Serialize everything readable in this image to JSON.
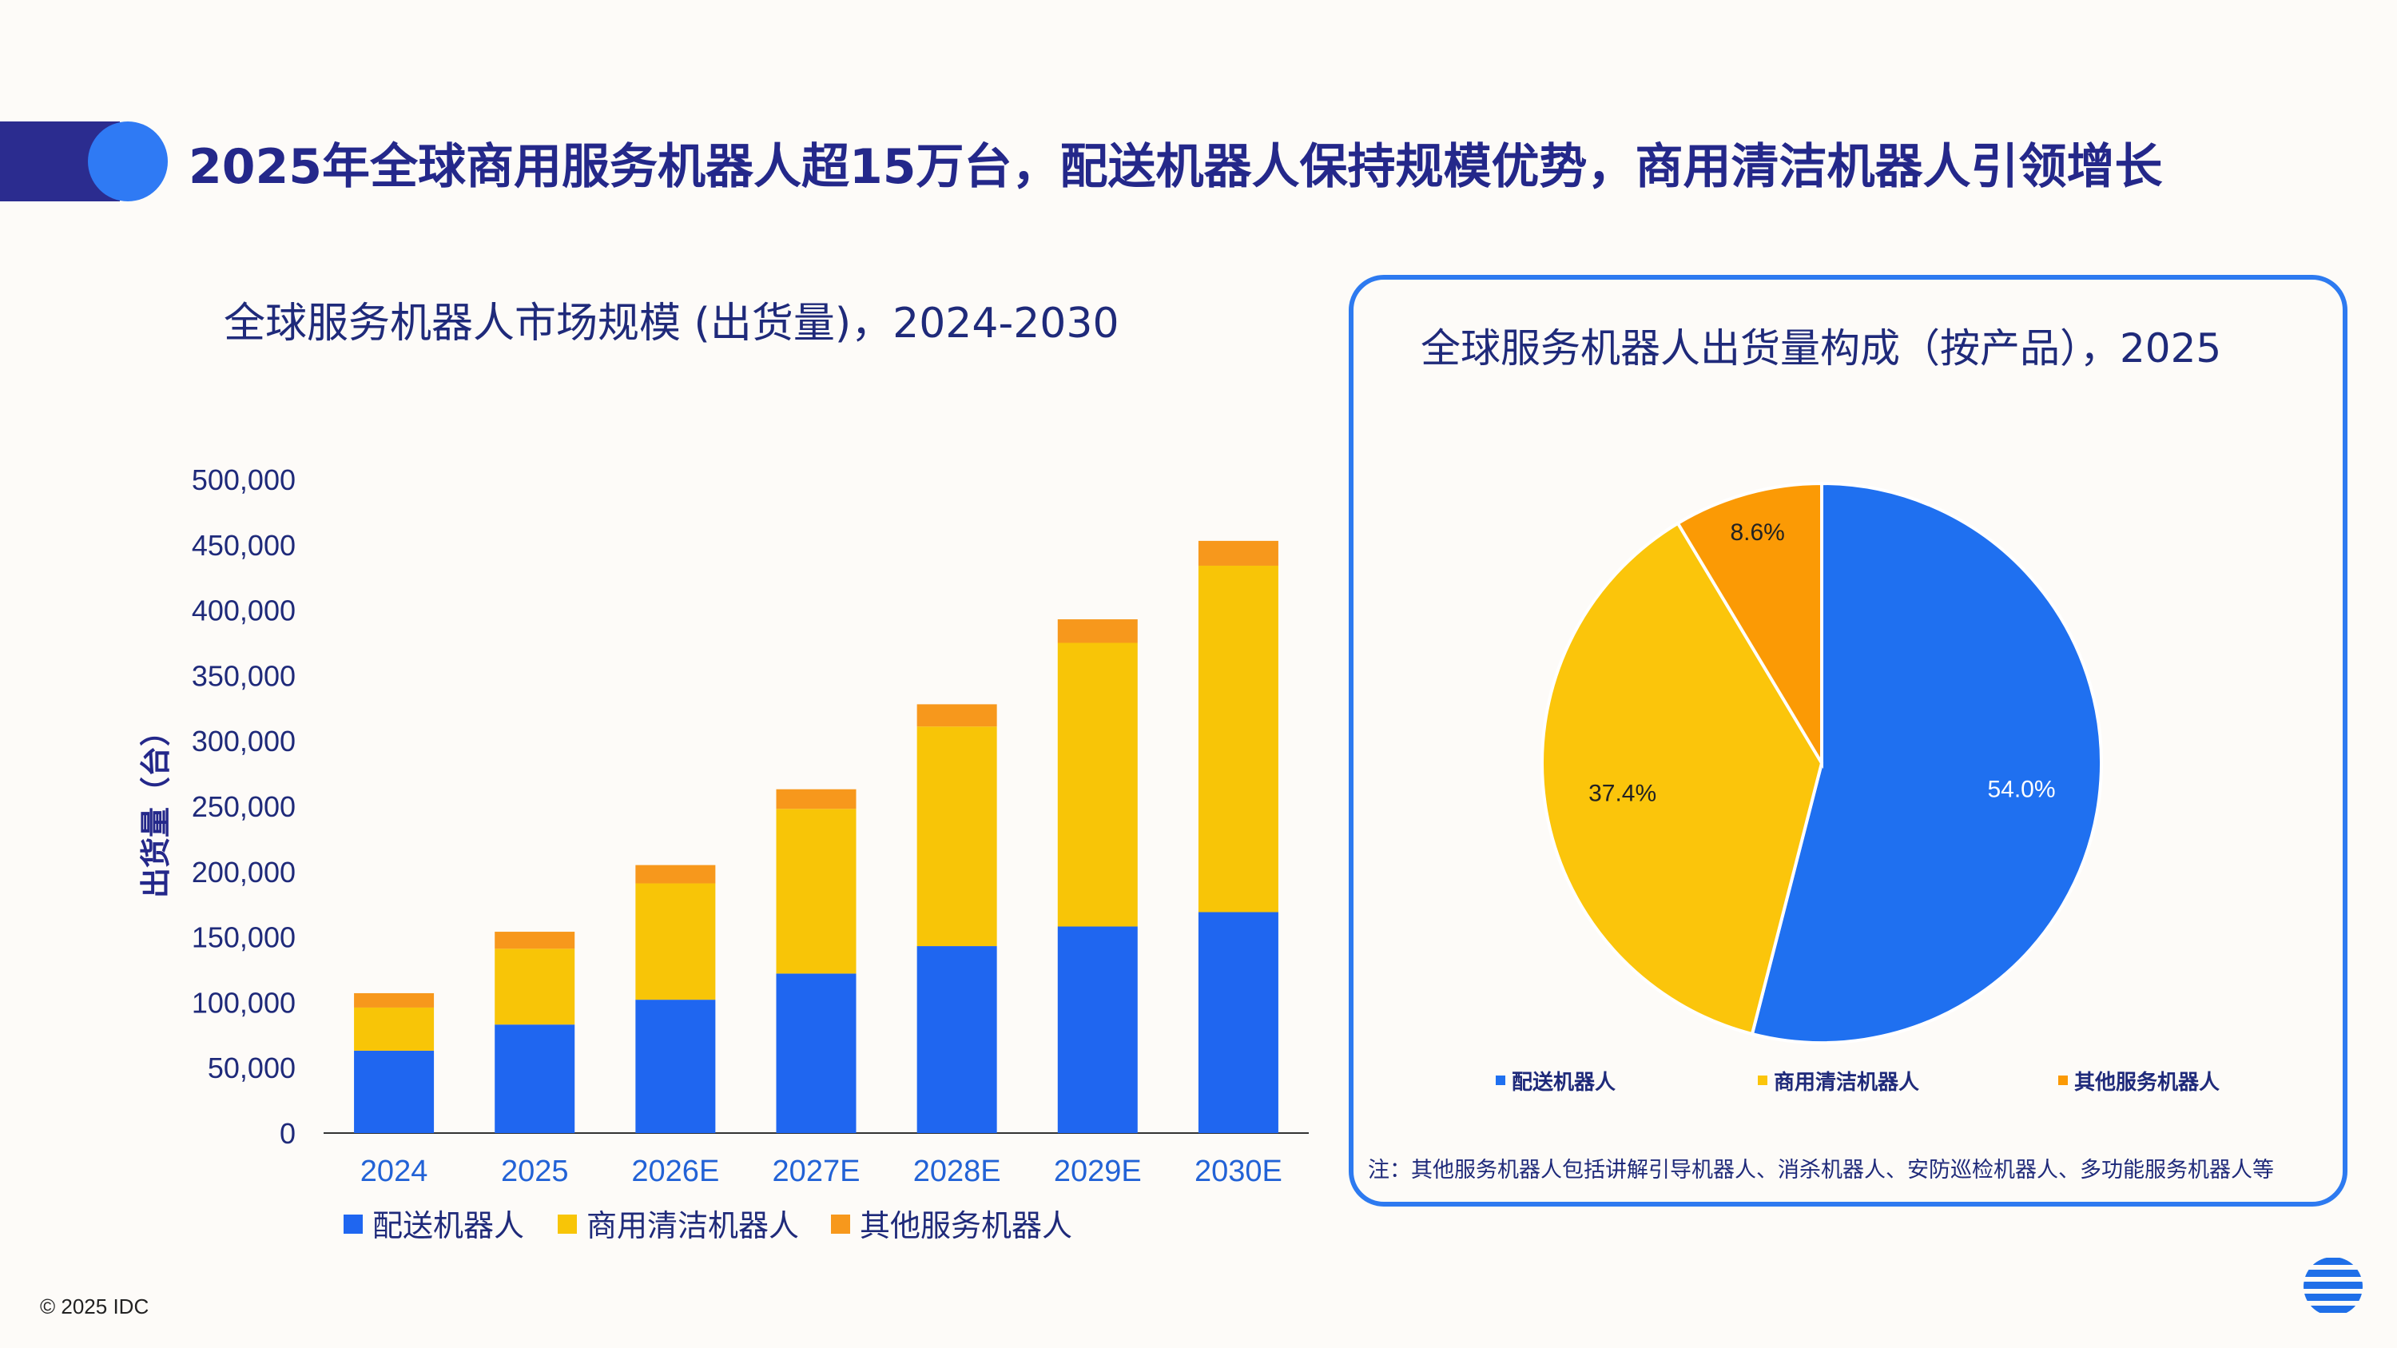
{
  "page": {
    "headline": "2025年全球商用服务机器人超15万台，配送机器人保持规模优势，商用清洁机器人引领增长",
    "copyright": "© 2025 IDC",
    "colors": {
      "navy": "#24288a",
      "accent_blue": "#2f7af4",
      "border_blue": "#2d7af0"
    }
  },
  "logo": {
    "icon": "idc-globe-icon"
  },
  "chart_data": [
    {
      "type": "bar",
      "stacked": true,
      "title": "全球服务机器人市场规模 (出货量)，2024-2030",
      "ylabel": "出货量（台）",
      "xlabel": "",
      "categories": [
        "2024",
        "2025",
        "2026E",
        "2027E",
        "2028E",
        "2029E",
        "2030E"
      ],
      "ylim": [
        0,
        500000
      ],
      "yticks": [
        0,
        50000,
        100000,
        150000,
        200000,
        250000,
        300000,
        350000,
        400000,
        450000,
        500000
      ],
      "ytick_labels": [
        "0",
        "50,000",
        "100,000",
        "150,000",
        "200,000",
        "250,000",
        "300,000",
        "350,000",
        "400,000",
        "450,000",
        "500,000"
      ],
      "legend_position": "bottom",
      "series": [
        {
          "name": "配送机器人",
          "color": "#1f66f0",
          "values": [
            63000,
            83000,
            102000,
            122000,
            143000,
            158000,
            169000
          ]
        },
        {
          "name": "商用清洁机器人",
          "color": "#f8c507",
          "values": [
            33000,
            58000,
            89000,
            126000,
            168000,
            217000,
            265000
          ]
        },
        {
          "name": "其他服务机器人",
          "color": "#f7981c",
          "values": [
            11000,
            13000,
            14000,
            15000,
            17000,
            18000,
            19000
          ]
        }
      ]
    },
    {
      "type": "pie",
      "title": "全球服务机器人出货量构成（按产品），2025",
      "legend_position": "bottom",
      "slices": [
        {
          "name": "配送机器人",
          "value": 54.0,
          "label": "54.0%",
          "color": "#1f70f0"
        },
        {
          "name": "商用清洁机器人",
          "value": 37.4,
          "label": "37.4%",
          "color": "#fbc50b"
        },
        {
          "name": "其他服务机器人",
          "value": 8.6,
          "label": "8.6%",
          "color": "#fb9a05"
        }
      ],
      "note": "注：其他服务机器人包括讲解引导机器人、消杀机器人、安防巡检机器人、多功能服务机器人等"
    }
  ]
}
